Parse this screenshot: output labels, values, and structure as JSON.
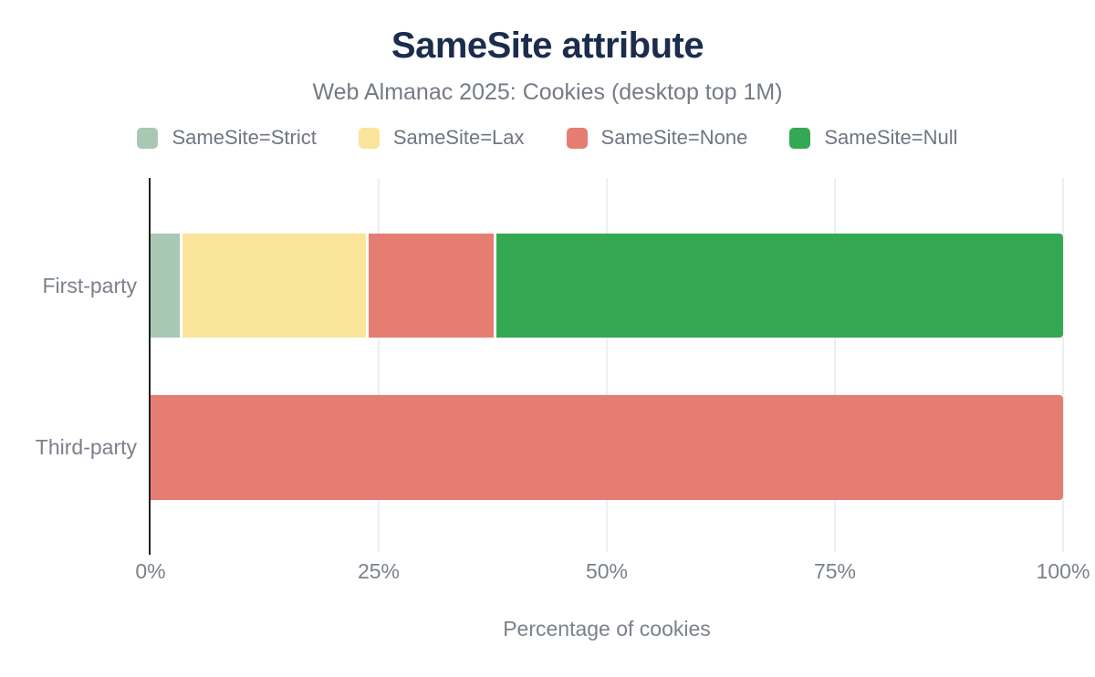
{
  "title": "SameSite attribute",
  "subtitle": "Web Almanac 2025: Cookies (desktop top 1M)",
  "colors": {
    "title_text": "#1b2c4d",
    "muted_text": "#757b85",
    "axis": "#212121",
    "gridline": "#edeef0",
    "strict": "#a8c8b4",
    "lax": "#fbe49c",
    "none": "#e57d72",
    "null": "#34a853"
  },
  "chart_data": {
    "type": "bar",
    "orientation": "horizontal",
    "stacked": true,
    "title": "SameSite attribute",
    "subtitle": "Web Almanac 2025: Cookies (desktop top 1M)",
    "xlabel": "Percentage of cookies",
    "unit": "%",
    "xlim": [
      0,
      100
    ],
    "x_ticks": [
      {
        "value": 0,
        "label": "0%"
      },
      {
        "value": 25,
        "label": "25%"
      },
      {
        "value": 50,
        "label": "50%"
      },
      {
        "value": 75,
        "label": "75%"
      },
      {
        "value": 100,
        "label": "100%"
      }
    ],
    "grid": true,
    "legend_position": "top",
    "categories": [
      "First-party",
      "Third-party"
    ],
    "series": [
      {
        "name": "SameSite=Strict",
        "color": "#a8c8b4",
        "values": [
          3.2,
          0
        ]
      },
      {
        "name": "SameSite=Lax",
        "color": "#fbe49c",
        "values": [
          20.3,
          0
        ]
      },
      {
        "name": "SameSite=None",
        "color": "#e57d72",
        "values": [
          13.8,
          100
        ]
      },
      {
        "name": "SameSite=Null",
        "color": "#34a853",
        "values": [
          62.7,
          0
        ]
      }
    ]
  }
}
